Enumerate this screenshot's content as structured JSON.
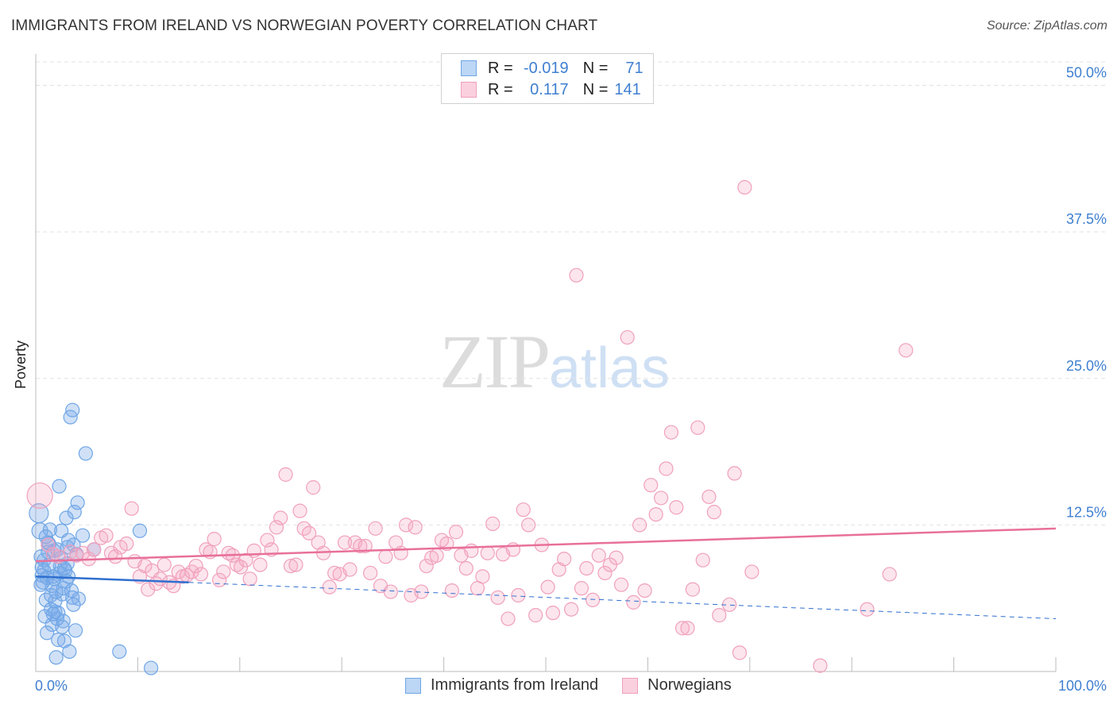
{
  "title": "IMMIGRANTS FROM IRELAND VS NORWEGIAN POVERTY CORRELATION CHART",
  "source": "Source: ZipAtlas.com",
  "watermark": {
    "zip": "ZIP",
    "atlas": "atlas"
  },
  "legend": {
    "rows": [
      {
        "r_label": "R =",
        "r_value": "-0.019",
        "n_label": "N =",
        "n_value": "71"
      },
      {
        "r_label": "R =",
        "r_value": "0.117",
        "n_label": "N =",
        "n_value": "141"
      }
    ]
  },
  "bottom_legend": [
    "Immigrants from Ireland",
    "Norwegians"
  ],
  "colors": {
    "blue": "#6fa6e6",
    "blue_line": "#2f6fcf",
    "pink": "#f0a0bc",
    "pink_line": "#e8709a",
    "tick_text": "#3f7fd0"
  },
  "chart_data": {
    "type": "scatter",
    "title": "IMMIGRANTS FROM IRELAND VS NORWEGIAN POVERTY CORRELATION CHART",
    "xlabel": "",
    "ylabel": "Poverty",
    "xlim": [
      0,
      100
    ],
    "ylim": [
      0,
      52
    ],
    "x_tick_labels": [
      "0.0%",
      "100.0%"
    ],
    "y_ticks": [
      12.5,
      25.0,
      37.5,
      50.0
    ],
    "y_tick_labels": [
      "12.5%",
      "25.0%",
      "37.5%",
      "50.0%"
    ],
    "series": [
      {
        "name": "Immigrants from Ireland",
        "r": -0.019,
        "n": 71,
        "trend": {
          "x0": 0,
          "y0": 8.1,
          "x1": 15,
          "y1": 7.6,
          "dash_to_x": 100,
          "dash_to_y": 4.5
        },
        "points": [
          [
            0.3,
            13.5
          ],
          [
            0.4,
            12
          ],
          [
            0.5,
            9.8
          ],
          [
            0.6,
            8.2
          ],
          [
            0.7,
            7.6
          ],
          [
            0.8,
            8.6
          ],
          [
            0.9,
            4.7
          ],
          [
            1.0,
            6.1
          ],
          [
            1.1,
            8.0
          ],
          [
            1.2,
            10.2
          ],
          [
            1.3,
            10.9
          ],
          [
            1.4,
            12.1
          ],
          [
            1.5,
            6.5
          ],
          [
            1.6,
            4.0
          ],
          [
            1.7,
            8.1
          ],
          [
            1.8,
            10.3
          ],
          [
            1.9,
            5.1
          ],
          [
            2.0,
            1.2
          ],
          [
            2.1,
            4.5
          ],
          [
            2.2,
            2.7
          ],
          [
            2.3,
            15.8
          ],
          [
            2.4,
            8.4
          ],
          [
            2.5,
            12.0
          ],
          [
            2.6,
            6.6
          ],
          [
            2.7,
            4.3
          ],
          [
            2.8,
            2.6
          ],
          [
            2.9,
            8.6
          ],
          [
            3.0,
            13.1
          ],
          [
            3.1,
            10.6
          ],
          [
            3.2,
            8.1
          ],
          [
            3.3,
            1.7
          ],
          [
            3.4,
            21.7
          ],
          [
            3.5,
            6.9
          ],
          [
            3.6,
            22.3
          ],
          [
            3.7,
            10.8
          ],
          [
            3.8,
            13.6
          ],
          [
            3.9,
            3.5
          ],
          [
            4.0,
            10.0
          ],
          [
            4.1,
            14.4
          ],
          [
            4.2,
            6.2
          ],
          [
            4.6,
            11.6
          ],
          [
            4.9,
            18.6
          ],
          [
            5.7,
            10.4
          ],
          [
            8.2,
            1.7
          ],
          [
            10.2,
            12.0
          ],
          [
            11.3,
            0.3
          ],
          [
            0.5,
            7.4
          ],
          [
            0.8,
            9.5
          ],
          [
            1.2,
            11.0
          ],
          [
            1.5,
            5.3
          ],
          [
            1.8,
            7.9
          ],
          [
            2.1,
            10.4
          ],
          [
            2.4,
            9.0
          ],
          [
            2.7,
            7.1
          ],
          [
            3.1,
            9.2
          ],
          [
            3.6,
            6.3
          ],
          [
            0.6,
            8.9
          ],
          [
            1.0,
            11.5
          ],
          [
            1.3,
            9.1
          ],
          [
            1.6,
            7.3
          ],
          [
            1.9,
            6.0
          ],
          [
            2.2,
            5.0
          ],
          [
            2.5,
            9.7
          ],
          [
            2.8,
            8.8
          ],
          [
            3.2,
            11.2
          ],
          [
            3.7,
            5.7
          ],
          [
            1.1,
            3.3
          ],
          [
            1.7,
            4.9
          ],
          [
            2.0,
            6.8
          ],
          [
            2.6,
            3.8
          ],
          [
            3.0,
            7.7
          ]
        ]
      },
      {
        "name": "Norwegians",
        "r": 0.117,
        "n": 141,
        "trend": {
          "x0": 0,
          "y0": 9.4,
          "x1": 100,
          "y1": 12.2
        },
        "points": [
          [
            0.4,
            15.0
          ],
          [
            1.2,
            10.8
          ],
          [
            1.7,
            10.0
          ],
          [
            2.2,
            9.8
          ],
          [
            3.4,
            10.2
          ],
          [
            4.0,
            9.9
          ],
          [
            4.6,
            10.1
          ],
          [
            5.2,
            9.6
          ],
          [
            5.7,
            10.4
          ],
          [
            6.4,
            11.4
          ],
          [
            6.9,
            11.6
          ],
          [
            7.4,
            10.1
          ],
          [
            7.8,
            9.8
          ],
          [
            8.3,
            10.6
          ],
          [
            8.9,
            10.9
          ],
          [
            9.4,
            13.9
          ],
          [
            9.7,
            9.4
          ],
          [
            10.2,
            8.1
          ],
          [
            10.7,
            9.0
          ],
          [
            11.0,
            7.0
          ],
          [
            11.4,
            8.6
          ],
          [
            11.8,
            7.5
          ],
          [
            12.2,
            7.9
          ],
          [
            12.6,
            9.1
          ],
          [
            13.1,
            7.6
          ],
          [
            13.5,
            7.3
          ],
          [
            14.0,
            8.5
          ],
          [
            14.4,
            8.1
          ],
          [
            14.8,
            8.2
          ],
          [
            15.3,
            8.5
          ],
          [
            15.7,
            9.0
          ],
          [
            16.2,
            8.3
          ],
          [
            16.7,
            10.4
          ],
          [
            17.1,
            10.2
          ],
          [
            17.5,
            11.3
          ],
          [
            18.0,
            7.8
          ],
          [
            18.4,
            8.5
          ],
          [
            18.9,
            10.1
          ],
          [
            19.3,
            9.9
          ],
          [
            19.7,
            9.1
          ],
          [
            20.1,
            8.9
          ],
          [
            20.6,
            9.5
          ],
          [
            21.0,
            7.9
          ],
          [
            21.4,
            10.3
          ],
          [
            22.0,
            9.1
          ],
          [
            22.7,
            11.2
          ],
          [
            23.1,
            10.4
          ],
          [
            23.6,
            12.3
          ],
          [
            24.0,
            13.1
          ],
          [
            24.5,
            16.8
          ],
          [
            25.0,
            9.0
          ],
          [
            25.5,
            9.1
          ],
          [
            25.9,
            13.7
          ],
          [
            26.3,
            12.2
          ],
          [
            26.8,
            11.8
          ],
          [
            27.2,
            15.7
          ],
          [
            27.7,
            11.0
          ],
          [
            28.2,
            10.1
          ],
          [
            28.8,
            7.2
          ],
          [
            29.3,
            8.4
          ],
          [
            29.8,
            8.3
          ],
          [
            30.3,
            11.0
          ],
          [
            30.8,
            8.7
          ],
          [
            31.3,
            11.0
          ],
          [
            31.8,
            10.7
          ],
          [
            32.3,
            10.7
          ],
          [
            32.8,
            8.4
          ],
          [
            33.3,
            12.2
          ],
          [
            33.8,
            7.3
          ],
          [
            34.3,
            9.8
          ],
          [
            34.8,
            6.8
          ],
          [
            35.3,
            11.0
          ],
          [
            35.8,
            10.1
          ],
          [
            36.3,
            12.5
          ],
          [
            36.8,
            6.5
          ],
          [
            37.2,
            12.3
          ],
          [
            37.8,
            6.8
          ],
          [
            38.3,
            9.0
          ],
          [
            38.8,
            9.7
          ],
          [
            39.3,
            9.9
          ],
          [
            39.8,
            11.2
          ],
          [
            40.3,
            10.9
          ],
          [
            40.8,
            6.9
          ],
          [
            41.2,
            11.9
          ],
          [
            41.7,
            9.9
          ],
          [
            42.2,
            8.8
          ],
          [
            42.7,
            10.3
          ],
          [
            43.3,
            7.1
          ],
          [
            43.8,
            8.1
          ],
          [
            44.3,
            10.1
          ],
          [
            44.8,
            12.6
          ],
          [
            45.3,
            6.3
          ],
          [
            45.8,
            10.0
          ],
          [
            46.3,
            4.5
          ],
          [
            46.8,
            10.4
          ],
          [
            47.3,
            6.5
          ],
          [
            47.8,
            13.8
          ],
          [
            48.3,
            12.5
          ],
          [
            49.0,
            4.8
          ],
          [
            49.6,
            10.8
          ],
          [
            50.2,
            7.2
          ],
          [
            50.7,
            5.0
          ],
          [
            51.3,
            8.7
          ],
          [
            51.8,
            9.6
          ],
          [
            52.5,
            5.3
          ],
          [
            53.0,
            33.8
          ],
          [
            53.5,
            7.1
          ],
          [
            54.0,
            8.8
          ],
          [
            54.6,
            6.1
          ],
          [
            55.2,
            9.9
          ],
          [
            55.8,
            8.4
          ],
          [
            56.3,
            9.1
          ],
          [
            56.9,
            9.7
          ],
          [
            57.4,
            7.4
          ],
          [
            58.0,
            28.5
          ],
          [
            58.6,
            5.9
          ],
          [
            59.2,
            12.5
          ],
          [
            59.7,
            6.9
          ],
          [
            60.3,
            15.9
          ],
          [
            60.8,
            13.4
          ],
          [
            61.3,
            14.8
          ],
          [
            61.8,
            17.3
          ],
          [
            62.3,
            20.4
          ],
          [
            62.8,
            14.0
          ],
          [
            63.4,
            3.7
          ],
          [
            63.9,
            3.7
          ],
          [
            64.4,
            7.0
          ],
          [
            64.9,
            20.8
          ],
          [
            65.4,
            9.5
          ],
          [
            66.0,
            14.9
          ],
          [
            66.5,
            13.6
          ],
          [
            67.0,
            4.8
          ],
          [
            68.0,
            5.7
          ],
          [
            68.5,
            16.9
          ],
          [
            69.0,
            1.6
          ],
          [
            69.5,
            41.3
          ],
          [
            70.2,
            8.5
          ],
          [
            76.9,
            0.5
          ],
          [
            81.5,
            5.3
          ],
          [
            83.7,
            8.3
          ],
          [
            85.3,
            27.4
          ]
        ]
      }
    ]
  }
}
